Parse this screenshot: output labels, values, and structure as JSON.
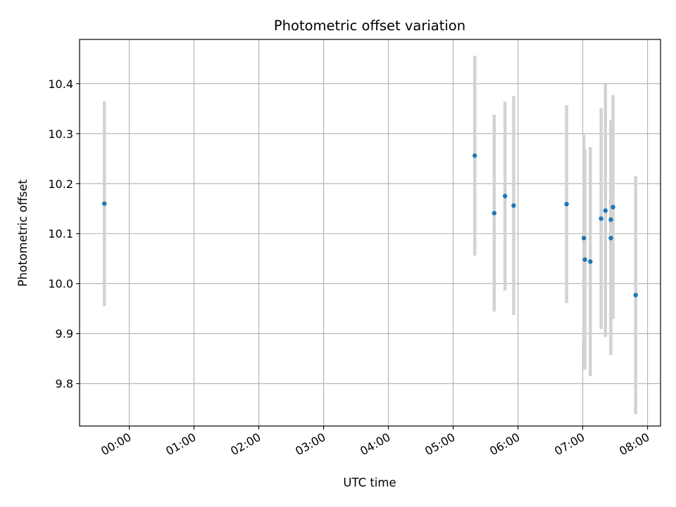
{
  "chart_data": {
    "type": "scatter",
    "title": "Photometric offset variation",
    "xlabel": "UTC time",
    "ylabel": "Photometric offset",
    "x_tick_labels": [
      "00:00",
      "01:00",
      "02:00",
      "03:00",
      "04:00",
      "05:00",
      "06:00",
      "07:00",
      "08:00"
    ],
    "y_tick_labels": [
      "9.8",
      "9.9",
      "10.0",
      "10.1",
      "10.2",
      "10.3",
      "10.4"
    ],
    "xlim": [
      "-00:46",
      "08:12"
    ],
    "ylim": [
      9.715,
      10.4885
    ],
    "grid": true,
    "colors": {
      "marker": "#1f77b4",
      "errorbar": "#d3d3d3",
      "grid": "#b0b0b0"
    },
    "series": [
      {
        "points": [
          {
            "x": "-00:23",
            "y": 10.16,
            "yerr": 0.205
          },
          {
            "x": "05:20",
            "y": 10.256,
            "yerr": 0.2
          },
          {
            "x": "05:38",
            "y": 10.141,
            "yerr": 0.197
          },
          {
            "x": "05:48",
            "y": 10.175,
            "yerr": 0.189
          },
          {
            "x": "05:56",
            "y": 10.156,
            "yerr": 0.219
          },
          {
            "x": "06:45",
            "y": 10.159,
            "yerr": 0.198
          },
          {
            "x": "07:01",
            "y": 10.091,
            "yerr": 0.207
          },
          {
            "x": "07:02",
            "y": 10.048,
            "yerr": 0.22
          },
          {
            "x": "07:07",
            "y": 10.044,
            "yerr": 0.229
          },
          {
            "x": "07:17",
            "y": 10.13,
            "yerr": 0.221
          },
          {
            "x": "07:21",
            "y": 10.146,
            "yerr": 0.253
          },
          {
            "x": "07:26",
            "y": 10.128,
            "yerr": 0.2
          },
          {
            "x": "07:26",
            "y": 10.091,
            "yerr": 0.234
          },
          {
            "x": "07:28",
            "y": 10.153,
            "yerr": 0.224
          },
          {
            "x": "07:49",
            "y": 9.977,
            "yerr": 0.238
          }
        ]
      }
    ]
  }
}
